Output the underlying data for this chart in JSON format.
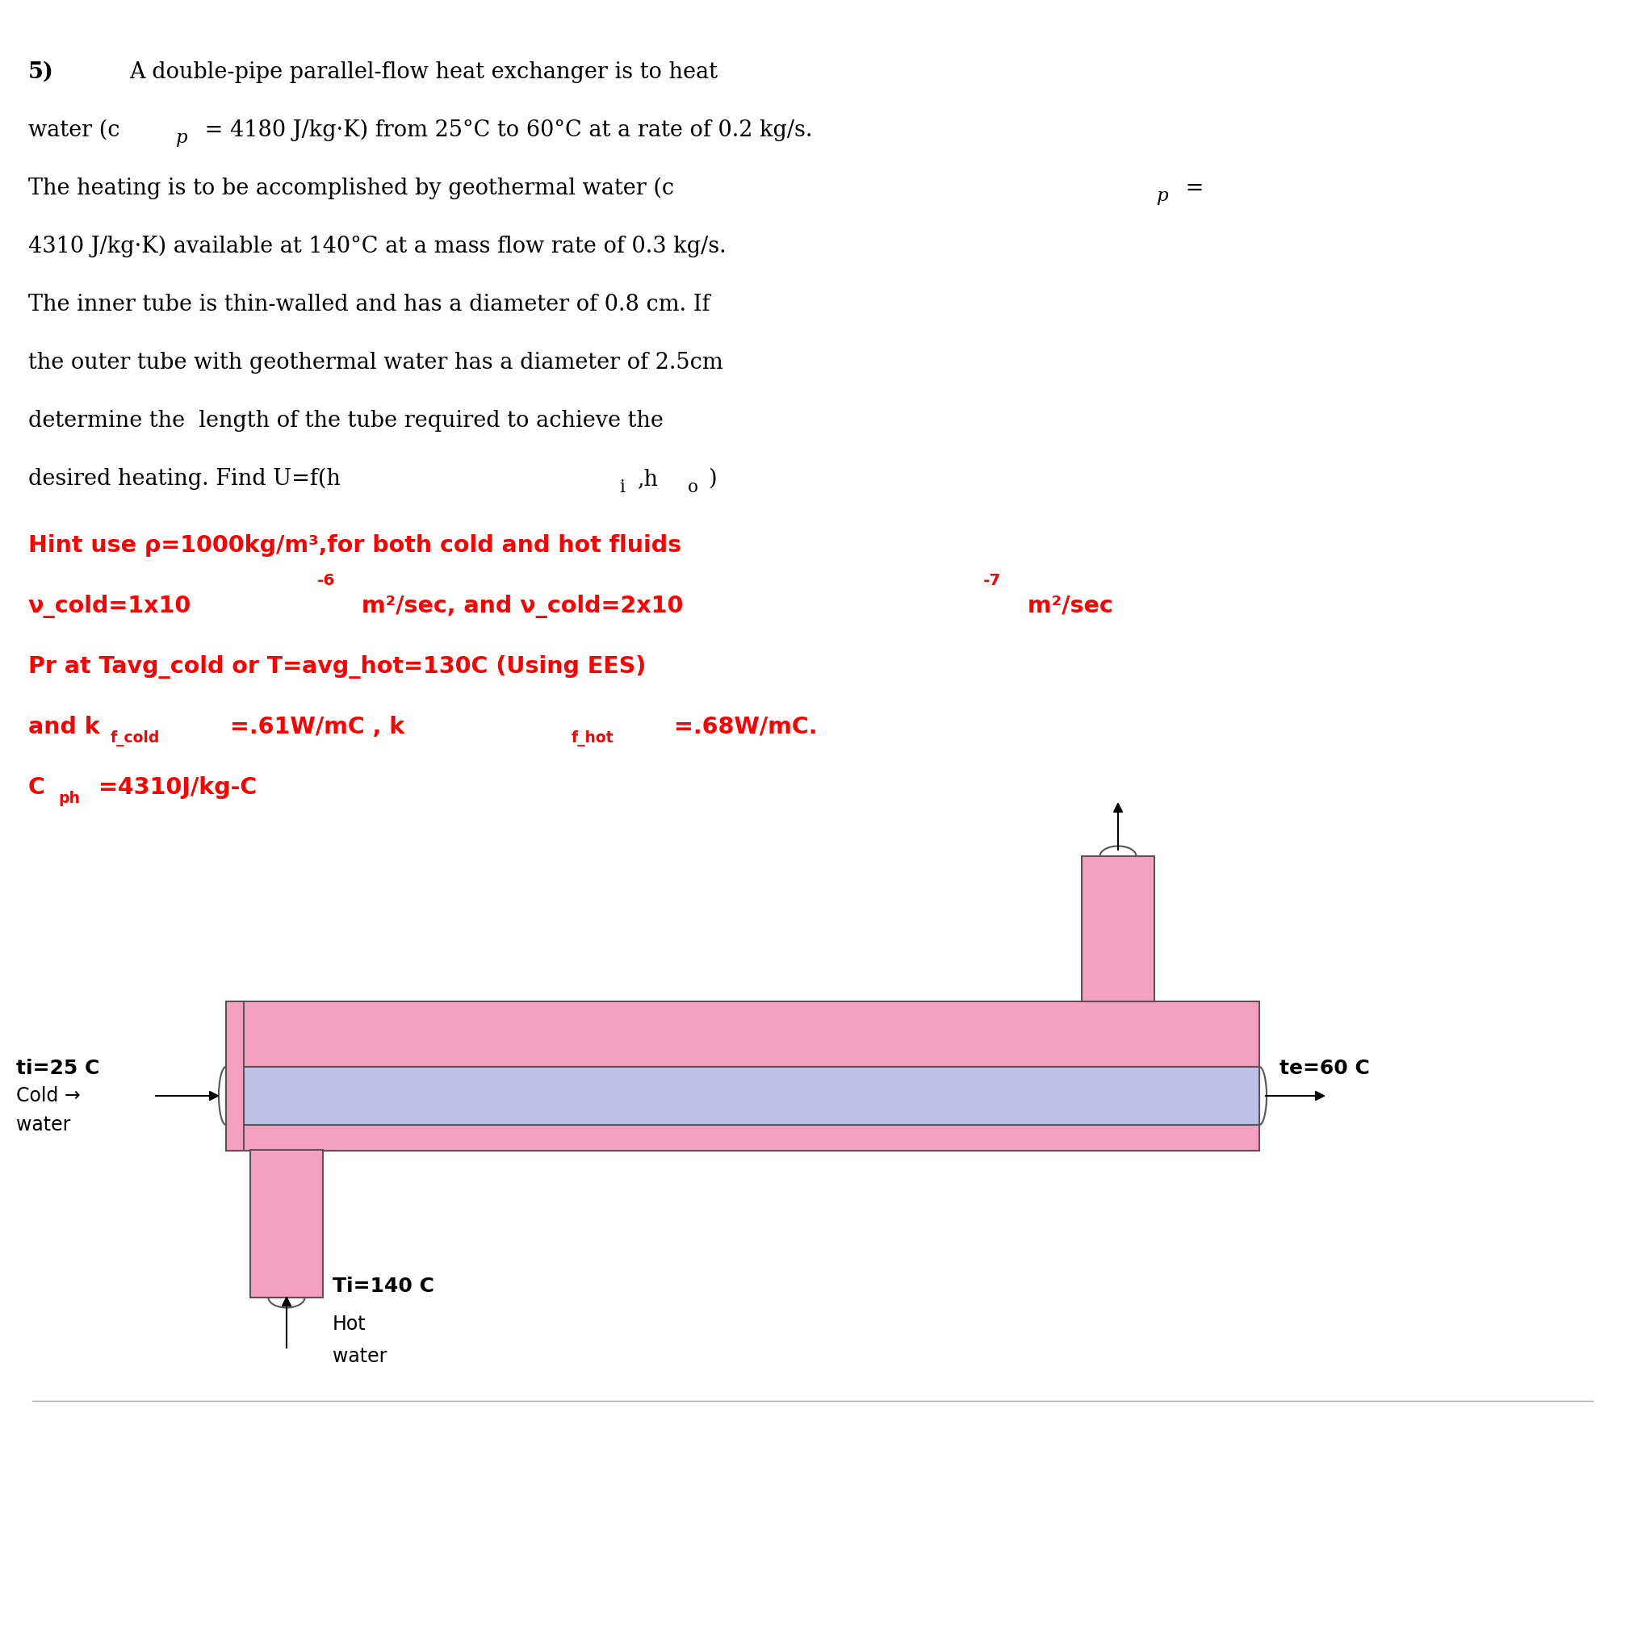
{
  "bg_color": "#ffffff",
  "text_color_black": "#000000",
  "text_color_red": "#ff0000",
  "text_color_blue": "#4444cc",
  "pink_color": "#ff99bb",
  "lavender_color": "#bbbbee",
  "line1": "5)        A double-pipe parallel-flow heat exchanger is to heat",
  "line2": "water (c",
  "line2b": "p",
  "line2c": " = 4180 J/kg·K) from 25°C to 60°C at a rate of 0.2 kg/s.",
  "line3": "The heating is to be accomplished by geothermal water (c",
  "line3b": "p",
  "line3c": " =",
  "line4": "4310 J/kg·K) available at 140°C at a mass flow rate of 0.3 kg/s.",
  "line5": "The inner tube is thin-walled and has a diameter of 0.8 cm. If",
  "line6": "the outer tube with geothermal water has a diameter of 2.5cm",
  "line7": "determine the  length of the tube required to achieve the",
  "line8": "desired heating. Find U=f(h",
  "line8b": "i",
  "line8c": ",h",
  "line8d": "o",
  "line8e": ")",
  "hint_line1": "Hint use ρ=1000kg/m³,for both cold and hot fluids",
  "hint_line2": "ν_cold=1x10⁻⁶ m²/sec, and ν_cold=2x10⁻⁷ m²/sec",
  "hint_line3": "Pr at Tavg_cold or T=avg_hot=130C (Using EES)",
  "hint_line4": "and kf_cold=.61W/mC , kf_hot=.68W/mC.",
  "hint_line5": "Cₚₕ=4310J/kg-C",
  "diagram_pink": "#f4a0c0",
  "diagram_lavender": "#c0c0e8",
  "diagram_outline": "#888888"
}
